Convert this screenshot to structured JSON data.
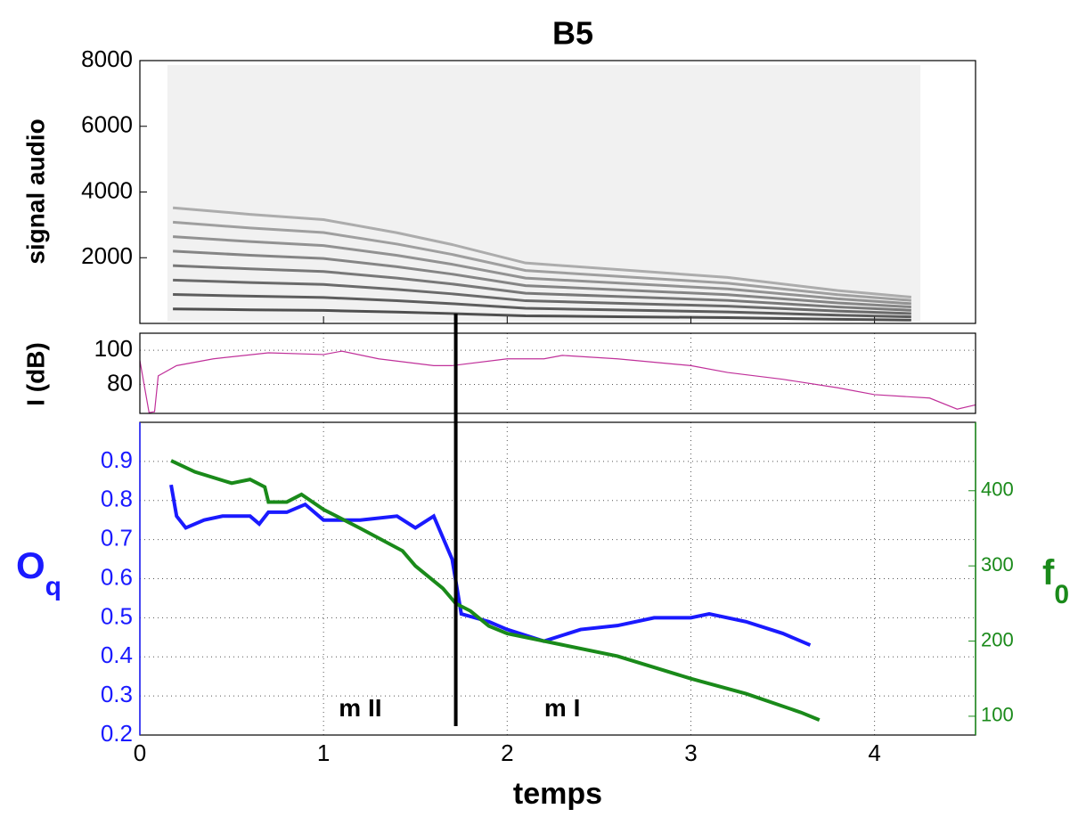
{
  "chart_data": [
    {
      "type": "spectrogram",
      "title": "B5",
      "ylabel": "signal audio",
      "color": "#333333",
      "xlim": [
        0,
        4.55
      ],
      "xticks": [
        0,
        1,
        2,
        3,
        4
      ],
      "ylim": [
        0,
        8000
      ],
      "yticks": [
        2000,
        4000,
        6000,
        8000
      ],
      "x": [
        0.18,
        0.6,
        1.0,
        1.4,
        1.7,
        2.1,
        2.6,
        3.2,
        3.8,
        4.2
      ],
      "series": [
        {
          "values": [
            440,
            415,
            395,
            345,
            300,
            230,
            205,
            175,
            125,
            100
          ]
        },
        {
          "values": [
            880,
            830,
            790,
            690,
            600,
            460,
            410,
            350,
            250,
            200
          ]
        },
        {
          "values": [
            1320,
            1245,
            1185,
            1035,
            900,
            690,
            615,
            525,
            375,
            300
          ]
        },
        {
          "values": [
            1760,
            1660,
            1580,
            1380,
            1200,
            920,
            820,
            700,
            500,
            400
          ]
        },
        {
          "values": [
            2200,
            2075,
            1975,
            1725,
            1500,
            1150,
            1025,
            875,
            625,
            500
          ]
        },
        {
          "values": [
            2640,
            2490,
            2370,
            2070,
            1800,
            1380,
            1230,
            1050,
            750,
            600
          ]
        },
        {
          "values": [
            3080,
            2905,
            2765,
            2415,
            2100,
            1610,
            1435,
            1225,
            875,
            700
          ]
        },
        {
          "values": [
            3520,
            3320,
            3160,
            2760,
            2400,
            1840,
            1640,
            1400,
            1000,
            800
          ]
        }
      ]
    },
    {
      "type": "line",
      "ylabel": "I (dB)",
      "grid": true,
      "xlim": [
        0,
        4.55
      ],
      "xticks": [
        0,
        1,
        2,
        3,
        4
      ],
      "ylim": [
        63,
        110
      ],
      "yticks": [
        80,
        100
      ],
      "series": [
        {
          "color": "#c0309a",
          "x": [
            0,
            0.05,
            0.08,
            0.1,
            0.2,
            0.4,
            0.7,
            1.0,
            1.1,
            1.3,
            1.6,
            1.7,
            2.0,
            2.2,
            2.3,
            2.6,
            3.0,
            3.2,
            3.5,
            3.8,
            4.0,
            4.3,
            4.45,
            4.55
          ],
          "values": [
            94,
            63.5,
            64,
            85,
            91,
            95,
            98.5,
            97.5,
            99.5,
            95,
            91,
            91,
            95,
            95,
            97,
            95,
            91,
            87,
            83,
            78,
            74,
            72,
            65.5,
            68
          ]
        }
      ]
    },
    {
      "type": "line",
      "xlabel": "temps",
      "ylabel": "O",
      "ylabel_subscript": "q",
      "y2label": "f",
      "y2label_subscript": "0",
      "grid": true,
      "xlim": [
        0,
        4.55
      ],
      "xticks": [
        0,
        1,
        2,
        3,
        4
      ],
      "ylim": [
        0.2,
        1.0
      ],
      "yticks": [
        0.2,
        0.3,
        0.4,
        0.5,
        0.6,
        0.7,
        0.8,
        0.9
      ],
      "ycolor": "#1a1aff",
      "y2lim": [
        75,
        491
      ],
      "y2ticks": [
        100,
        200,
        300,
        400
      ],
      "y2color": "#1a8a1a",
      "vline_x": 1.72,
      "annotations": [
        {
          "text": "m II",
          "x": 1.2,
          "y": 0.265
        },
        {
          "text": "m I",
          "x": 2.3,
          "y": 0.265
        }
      ],
      "series": [
        {
          "color": "#1a1aff",
          "x": [
            0.17,
            0.2,
            0.25,
            0.35,
            0.45,
            0.6,
            0.65,
            0.7,
            0.8,
            0.9,
            1.0,
            1.2,
            1.4,
            1.5,
            1.6,
            1.7,
            1.75,
            1.9,
            2.0,
            2.2,
            2.4,
            2.6,
            2.8,
            3.0,
            3.1,
            3.3,
            3.5,
            3.65
          ],
          "values": [
            0.84,
            0.76,
            0.73,
            0.75,
            0.76,
            0.76,
            0.74,
            0.77,
            0.77,
            0.79,
            0.75,
            0.75,
            0.76,
            0.73,
            0.76,
            0.65,
            0.51,
            0.49,
            0.47,
            0.44,
            0.47,
            0.48,
            0.5,
            0.5,
            0.51,
            0.49,
            0.46,
            0.43
          ]
        },
        {
          "color": "#1a8a1a",
          "axis": "y2",
          "x": [
            0.17,
            0.3,
            0.5,
            0.6,
            0.68,
            0.7,
            0.8,
            0.88,
            1.0,
            1.2,
            1.43,
            1.5,
            1.65,
            1.72,
            1.8,
            1.9,
            2.0,
            2.3,
            2.6,
            3.0,
            3.3,
            3.6,
            3.7
          ],
          "values": [
            440,
            425,
            410,
            415,
            405,
            385,
            385,
            395,
            375,
            350,
            320,
            300,
            270,
            250,
            240,
            220,
            210,
            195,
            180,
            150,
            130,
            105,
            95
          ]
        }
      ]
    }
  ]
}
